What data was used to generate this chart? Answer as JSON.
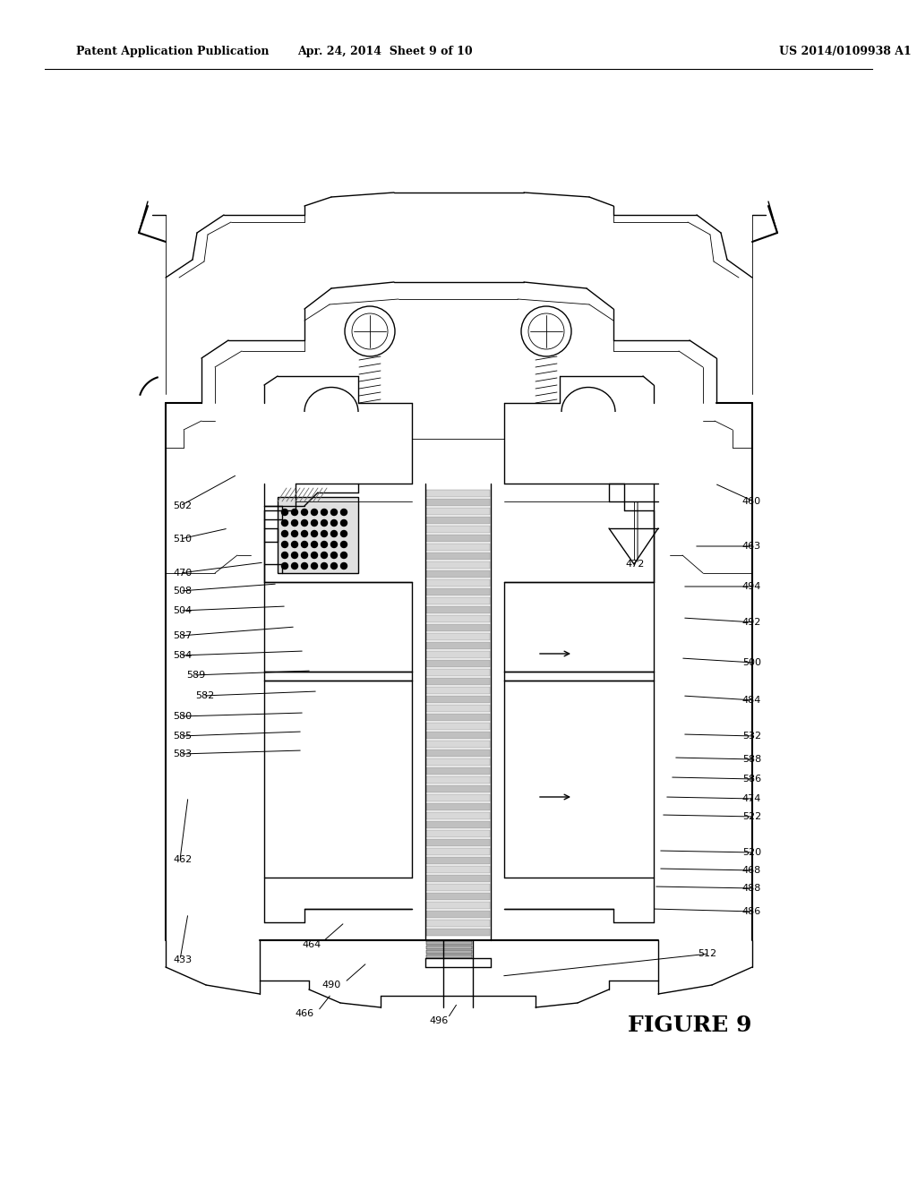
{
  "background_color": "#ffffff",
  "header_left": "Patent Application Publication",
  "header_center": "Apr. 24, 2014  Sheet 9 of 10",
  "header_right": "US 2014/0109938 A1",
  "figure_label": "FIGURE 9",
  "line_color": "#000000",
  "gray_light": "#d8d8d8",
  "gray_med": "#b0b0b0",
  "gray_dark": "#888888"
}
